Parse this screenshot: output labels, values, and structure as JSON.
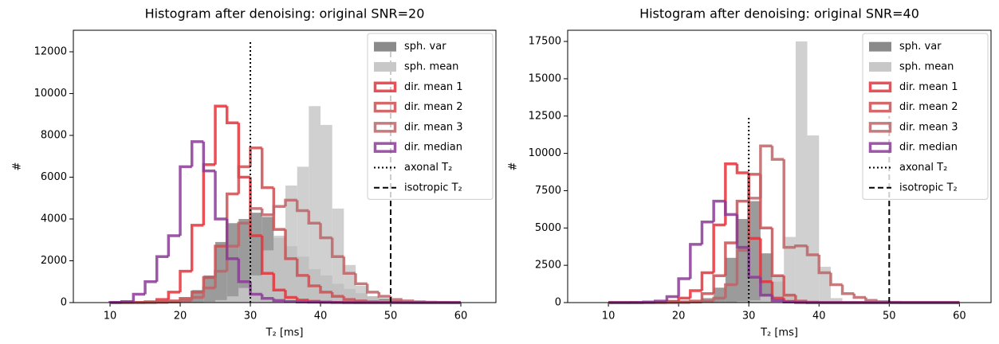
{
  "chart_data": [
    {
      "type": "histogram",
      "title": "Histogram after denoising: original SNR=20",
      "xlabel": "T₂ [ms]",
      "ylabel": "#",
      "bins": [
        10,
        11.67,
        13.33,
        15,
        16.67,
        18.33,
        20,
        21.67,
        23.33,
        25,
        26.67,
        28.33,
        30,
        31.67,
        33.33,
        35,
        36.67,
        38.33,
        40,
        41.67,
        43.33,
        45,
        46.67,
        48.33,
        50,
        51.67,
        53.33,
        55,
        56.67,
        58.33,
        60
      ],
      "series": [
        {
          "name": "sph. var",
          "color": "#8a8a8a",
          "style": "filled",
          "values": [
            0,
            0,
            0,
            0,
            20,
            60,
            200,
            600,
            1300,
            2900,
            3800,
            4000,
            4300,
            4100,
            3100,
            2700,
            2200,
            1600,
            1300,
            900,
            650,
            450,
            300,
            200,
            120,
            70,
            40,
            20,
            10,
            0
          ]
        },
        {
          "name": "sph. mean",
          "color": "#c8c8c8",
          "style": "filled",
          "values": [
            0,
            0,
            0,
            0,
            0,
            0,
            0,
            10,
            40,
            120,
            300,
            700,
            1300,
            2500,
            3200,
            5600,
            6500,
            9400,
            8500,
            4500,
            1800,
            800,
            300,
            100,
            40,
            10,
            0,
            0,
            0,
            0
          ]
        },
        {
          "name": "dir. mean 1",
          "color": "#e8313a",
          "style": "step",
          "values": [
            0,
            0,
            10,
            40,
            150,
            500,
            1500,
            3700,
            6600,
            9400,
            8600,
            6000,
            3200,
            1400,
            600,
            250,
            120,
            60,
            30,
            10,
            5,
            0,
            0,
            0,
            0,
            0,
            0,
            0,
            0,
            0
          ]
        },
        {
          "name": "dir. mean 2",
          "color": "#cc4f52",
          "style": "step",
          "values": [
            0,
            0,
            0,
            10,
            30,
            80,
            200,
            500,
            1200,
            2700,
            5200,
            6500,
            7400,
            5500,
            3500,
            2100,
            1300,
            800,
            500,
            300,
            150,
            80,
            40,
            20,
            10,
            5,
            0,
            0,
            0,
            0
          ]
        },
        {
          "name": "dir. mean 3",
          "color": "#bd6466",
          "style": "step",
          "values": [
            0,
            0,
            0,
            0,
            10,
            30,
            100,
            250,
            700,
            1500,
            2700,
            3800,
            4500,
            4200,
            4600,
            4900,
            4400,
            3800,
            3100,
            2200,
            1400,
            900,
            500,
            300,
            150,
            80,
            40,
            20,
            10,
            0
          ]
        },
        {
          "name": "dir. median",
          "color": "#8b3a96",
          "style": "step",
          "values": [
            10,
            50,
            400,
            1000,
            2200,
            3200,
            6500,
            7700,
            6300,
            4000,
            2100,
            1000,
            400,
            200,
            100,
            50,
            30,
            20,
            10,
            5,
            0,
            0,
            0,
            0,
            0,
            0,
            0,
            0,
            0,
            0
          ]
        }
      ],
      "vlines": [
        {
          "name": "axonal T₂",
          "x": 30,
          "ymax": 12500,
          "style": "dotted",
          "color": "#000000"
        },
        {
          "name": "isotropic T₂",
          "x": 50,
          "ymax": 12500,
          "style": "dashed",
          "color": "#000000"
        }
      ],
      "xlim": [
        4.77,
        65
      ],
      "ylim": [
        0,
        13030
      ],
      "xticks": [
        10,
        20,
        30,
        40,
        50,
        60
      ],
      "yticks": [
        0,
        2000,
        4000,
        6000,
        8000,
        10000,
        12000
      ],
      "legend": "upper right"
    },
    {
      "type": "histogram",
      "title": "Histogram after denoising: original SNR=40",
      "xlabel": "T₂ [ms]",
      "ylabel": "#",
      "bins": [
        10,
        11.67,
        13.33,
        15,
        16.67,
        18.33,
        20,
        21.67,
        23.33,
        25,
        26.67,
        28.33,
        30,
        31.67,
        33.33,
        35,
        36.67,
        38.33,
        40,
        41.67,
        43.33,
        45,
        46.67,
        48.33,
        50,
        51.67,
        53.33,
        55,
        56.67,
        58.33,
        60
      ],
      "series": [
        {
          "name": "sph. var",
          "color": "#8a8a8a",
          "style": "filled",
          "values": [
            0,
            0,
            0,
            0,
            0,
            0,
            10,
            60,
            300,
            1000,
            3000,
            5600,
            6800,
            3300,
            1400,
            500,
            150,
            40,
            0,
            0,
            0,
            0,
            0,
            0,
            0,
            0,
            0,
            0,
            0,
            0
          ]
        },
        {
          "name": "sph. mean",
          "color": "#c8c8c8",
          "style": "filled",
          "values": [
            0,
            0,
            0,
            0,
            0,
            0,
            0,
            0,
            0,
            0,
            20,
            80,
            150,
            400,
            1800,
            4400,
            17500,
            11200,
            2400,
            300,
            20,
            0,
            0,
            0,
            0,
            0,
            0,
            0,
            0,
            0
          ]
        },
        {
          "name": "dir. mean 1",
          "color": "#e8313a",
          "style": "step",
          "values": [
            0,
            0,
            0,
            0,
            20,
            80,
            300,
            800,
            2000,
            5200,
            9300,
            8700,
            4300,
            1400,
            300,
            80,
            20,
            0,
            0,
            0,
            0,
            0,
            0,
            0,
            0,
            0,
            0,
            0,
            0,
            0
          ]
        },
        {
          "name": "dir. mean 2",
          "color": "#cc4f52",
          "style": "step",
          "values": [
            0,
            0,
            0,
            0,
            0,
            20,
            50,
            100,
            600,
            1800,
            4000,
            6800,
            8600,
            5000,
            1800,
            500,
            100,
            30,
            0,
            0,
            0,
            0,
            0,
            0,
            0,
            0,
            0,
            0,
            0,
            0
          ]
        },
        {
          "name": "dir. mean 3",
          "color": "#bd6466",
          "style": "step",
          "values": [
            0,
            0,
            0,
            0,
            0,
            0,
            10,
            40,
            100,
            300,
            1200,
            3500,
            7000,
            10500,
            9600,
            3700,
            3800,
            3200,
            2000,
            1200,
            600,
            350,
            150,
            60,
            20,
            0,
            0,
            0,
            0,
            0
          ]
        },
        {
          "name": "dir. median",
          "color": "#8b3a96",
          "style": "step",
          "values": [
            0,
            0,
            10,
            40,
            100,
            400,
            1600,
            3900,
            5400,
            6800,
            5900,
            3700,
            1700,
            500,
            150,
            40,
            10,
            0,
            0,
            0,
            0,
            0,
            0,
            0,
            0,
            0,
            0,
            0,
            0,
            0
          ]
        }
      ],
      "vlines": [
        {
          "name": "axonal T₂",
          "x": 30,
          "ymax": 12500,
          "style": "dotted",
          "color": "#000000"
        },
        {
          "name": "isotropic T₂",
          "x": 50,
          "ymax": 12500,
          "style": "dashed",
          "color": "#000000"
        }
      ],
      "xlim": [
        4.2,
        64.5
      ],
      "ylim": [
        0,
        18250
      ],
      "xticks": [
        10,
        20,
        30,
        40,
        50,
        60
      ],
      "yticks": [
        0,
        2500,
        5000,
        7500,
        10000,
        12500,
        15000,
        17500
      ],
      "legend": "upper right"
    }
  ]
}
